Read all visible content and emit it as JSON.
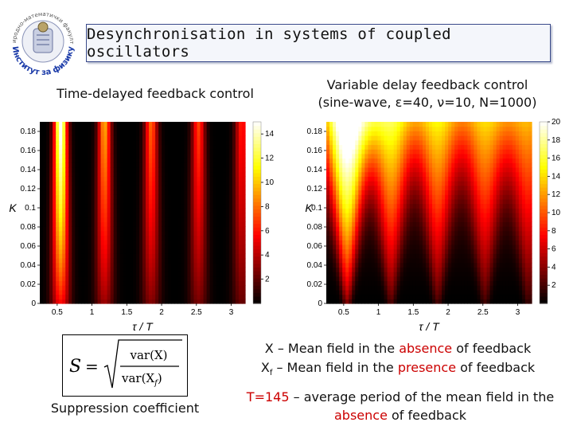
{
  "title": "Desynchronisation in systems of coupled oscillators",
  "logo": {
    "text_top": "Природно-математички факултет",
    "text_bottom": "Институт за физику"
  },
  "left_caption": "Time-delayed feedback control",
  "right_caption": {
    "line1": "Variable delay feedback control",
    "line2": "(sine-wave, ε=40, ν=10, N=1000)"
  },
  "chart_data": [
    {
      "type": "heatmap",
      "title": "Time-delayed feedback control",
      "xlabel": "τ / T",
      "ylabel": "K",
      "x_ticks": [
        "0.5",
        "1",
        "1.5",
        "2",
        "2.5",
        "3"
      ],
      "y_ticks": [
        "0",
        "0.02",
        "0.04",
        "0.06",
        "0.08",
        "0.1",
        "0.12",
        "0.14",
        "0.16",
        "0.18"
      ],
      "xlim": [
        0.25,
        3.2
      ],
      "ylim": [
        0,
        0.19
      ],
      "colorbar_ticks": [
        "2",
        "4",
        "6",
        "8",
        "10",
        "12",
        "14"
      ],
      "colorbar_range": [
        0,
        15
      ],
      "colormap": "hot"
    },
    {
      "type": "heatmap",
      "title": "Variable delay feedback control (sine-wave, ε=40, ν=10, N=1000)",
      "xlabel": "τ / T",
      "ylabel": "K",
      "x_ticks": [
        "0.5",
        "1",
        "1.5",
        "2",
        "2.5",
        "3"
      ],
      "y_ticks": [
        "0",
        "0.02",
        "0.04",
        "0.06",
        "0.08",
        "0.1",
        "0.12",
        "0.14",
        "0.16",
        "0.18"
      ],
      "xlim": [
        0.25,
        3.2
      ],
      "ylim": [
        0,
        0.19
      ],
      "colorbar_ticks": [
        "2",
        "4",
        "6",
        "8",
        "10",
        "12",
        "14",
        "16",
        "18",
        "20"
      ],
      "colorbar_range": [
        0,
        20
      ],
      "colormap": "hot"
    }
  ],
  "formula": {
    "lhs": "S",
    "eq": "=",
    "numerator": "var(X)",
    "denominator": "var(X",
    "denominator_sub": "f",
    "close": ")"
  },
  "suppression_label": "Suppression coefficient",
  "legend": {
    "line1_prefix": "X – Mean field in the ",
    "line1_highlight": "absence",
    "line1_suffix": " of feedback",
    "line2_var": "X",
    "line2_sub": "f",
    "line2_prefix": " – Mean field in the ",
    "line2_highlight": "presence",
    "line2_suffix": " of feedback"
  },
  "period_note": {
    "highlight": "T=145",
    "text": " – average period of the mean field in the ",
    "highlight2": "absence",
    "suffix": " of feedback"
  },
  "colors": {
    "highlight": "#cc0000",
    "title_border": "#3a4a8a",
    "logo_blue": "#1a3aa8"
  }
}
